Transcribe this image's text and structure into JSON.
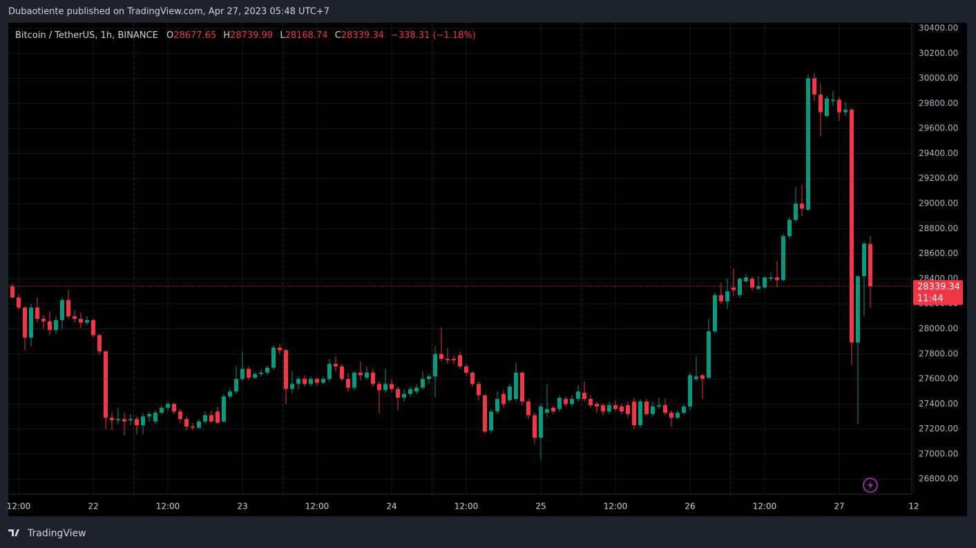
{
  "page": {
    "publisher_line": "Dubaotiente published on TradingView.com, Apr 27, 2023 05:48 UTC+7"
  },
  "footer": {
    "brand": "TradingView"
  },
  "chart_data": {
    "type": "candlestick",
    "header": {
      "o": "O",
      "h": "H",
      "l": "L",
      "c": "C",
      "change": "−338.31 (−1.18%)"
    },
    "countdown": "11:44",
    "up_color": "#089981",
    "down_color": "#f23645",
    "grid": true,
    "ylim": [
      26680,
      30444
    ],
    "yticks": [
      {
        "value": 26800,
        "label": "26800.00"
      },
      {
        "value": 27000,
        "label": "27000.00"
      },
      {
        "value": 27200,
        "label": "27200.00"
      },
      {
        "value": 27400,
        "label": "27400.00"
      },
      {
        "value": 27600,
        "label": "27600.00"
      },
      {
        "value": 27800,
        "label": "27800.00"
      },
      {
        "value": 28000,
        "label": "28000.00"
      },
      {
        "value": 28200,
        "label": "28200.00"
      },
      {
        "value": 28400,
        "label": "28400.00"
      },
      {
        "value": 28600,
        "label": "28600.00"
      },
      {
        "value": 28800,
        "label": "28800.00"
      },
      {
        "value": 29000,
        "label": "29000.00"
      },
      {
        "value": 29200,
        "label": "29200.00"
      },
      {
        "value": 29400,
        "label": "29400.00"
      },
      {
        "value": 29600,
        "label": "29600.00"
      },
      {
        "value": 29800,
        "label": "29800.00"
      },
      {
        "value": 30000,
        "label": "30000.00"
      },
      {
        "value": 30200,
        "label": "30200.00"
      },
      {
        "value": 30400,
        "label": "30400.00"
      }
    ],
    "categories": [
      null,
      "12:00",
      null,
      null,
      null,
      null,
      null,
      null,
      null,
      null,
      null,
      null,
      null,
      "22",
      null,
      null,
      null,
      null,
      null,
      null,
      null,
      null,
      null,
      null,
      null,
      "12:00",
      null,
      null,
      null,
      null,
      null,
      null,
      null,
      null,
      null,
      null,
      null,
      "23",
      null,
      null,
      null,
      null,
      null,
      null,
      null,
      null,
      null,
      null,
      null,
      "12:00",
      null,
      null,
      null,
      null,
      null,
      null,
      null,
      null,
      null,
      null,
      null,
      "24",
      null,
      null,
      null,
      null,
      null,
      null,
      null,
      null,
      null,
      null,
      null,
      "12:00",
      null,
      null,
      null,
      null,
      null,
      null,
      null,
      null,
      null,
      null,
      null,
      "25",
      null,
      null,
      null,
      null,
      null,
      null,
      null,
      null,
      null,
      null,
      null,
      "12:00",
      null,
      null,
      null,
      null,
      null,
      null,
      null,
      null,
      null,
      null,
      null,
      "26",
      null,
      null,
      null,
      null,
      null,
      null,
      null,
      null,
      null,
      null,
      null,
      "12:00",
      null,
      null,
      null,
      null,
      null,
      null,
      null,
      null,
      null,
      null,
      null,
      "27",
      null,
      null,
      null,
      null,
      null,
      null,
      null,
      null,
      null,
      null,
      null,
      "12"
    ],
    "series": [
      {
        "name": "Bitcoin / TetherUS, 1h, BINANCE",
        "open": [
          28340,
          28250,
          28170,
          27930,
          28170,
          28080,
          28060,
          27990,
          28070,
          28230,
          28100,
          28080,
          28050,
          28070,
          27950,
          27820,
          27290,
          27270,
          27280,
          27270,
          27280,
          27230,
          27300,
          27260,
          27330,
          27370,
          27400,
          27340,
          27280,
          27220,
          27210,
          27260,
          27310,
          27340,
          27260,
          27460,
          27500,
          27600,
          27680,
          27610,
          27640,
          27650,
          27690,
          27850,
          27830,
          27520,
          27560,
          27600,
          27560,
          27600,
          27570,
          27600,
          27720,
          27700,
          27600,
          27530,
          27650,
          27610,
          27650,
          27560,
          27510,
          27560,
          27520,
          27450,
          27480,
          27500,
          27530,
          27600,
          27620,
          27800,
          27760,
          27760,
          27790,
          27700,
          27650,
          27560,
          27470,
          27190,
          27340,
          27480,
          27430,
          27440,
          27650,
          27420,
          27310,
          27130,
          27330,
          27370,
          27360,
          27440,
          27400,
          27440,
          27490,
          27440,
          27400,
          27390,
          27340,
          27390,
          27380,
          27390,
          27420,
          27230,
          27420,
          27320,
          27380,
          27390,
          27330,
          27290,
          27330,
          27380,
          27600,
          27630,
          27610,
          27980,
          28270,
          28220,
          28330,
          28270,
          28380,
          28400,
          28320,
          28330,
          28400,
          28410,
          28390,
          28740,
          28870,
          29000,
          28950,
          30000,
          29870,
          29700,
          29820,
          29830,
          29730,
          29750,
          27890,
          28420,
          28677.65,
          null,
          null,
          null,
          null,
          null,
          null,
          null
        ],
        "high": [
          28360,
          28270,
          28180,
          28200,
          28250,
          28110,
          28140,
          28100,
          28250,
          28310,
          28150,
          28130,
          28100,
          28080,
          27960,
          27830,
          27330,
          27370,
          27330,
          27320,
          27300,
          27330,
          27340,
          27350,
          27390,
          27420,
          27410,
          27360,
          27300,
          27250,
          27280,
          27340,
          27350,
          27380,
          27480,
          27520,
          27700,
          27820,
          27700,
          27650,
          27680,
          27710,
          27870,
          27880,
          27840,
          27660,
          27620,
          27630,
          27620,
          27610,
          27620,
          27760,
          27780,
          27720,
          27650,
          27660,
          27740,
          27700,
          27680,
          27580,
          27680,
          27600,
          27540,
          27520,
          27540,
          27560,
          27660,
          27640,
          27860,
          28010,
          27850,
          27790,
          27820,
          27720,
          27660,
          27580,
          27480,
          27360,
          27500,
          27510,
          27560,
          27730,
          27660,
          27440,
          27330,
          27400,
          27560,
          27380,
          27470,
          27460,
          27470,
          27550,
          27580,
          27470,
          27420,
          27400,
          27420,
          27430,
          27400,
          27420,
          27450,
          27440,
          27440,
          27420,
          27450,
          27440,
          27350,
          27350,
          27400,
          27650,
          27780,
          27640,
          28080,
          28290,
          28370,
          28400,
          28480,
          28410,
          28440,
          28420,
          28420,
          28420,
          28450,
          28540,
          28760,
          28890,
          29130,
          29150,
          30030,
          30040,
          29960,
          29860,
          29900,
          29850,
          29810,
          29760,
          28430,
          28700,
          28739.99,
          null,
          null,
          null,
          null,
          null,
          null,
          null
        ],
        "low": [
          28250,
          28150,
          27830,
          27860,
          28050,
          28000,
          27950,
          27960,
          28000,
          28080,
          28050,
          28010,
          28030,
          27930,
          27790,
          27200,
          27190,
          27240,
          27150,
          27230,
          27160,
          27160,
          27260,
          27240,
          27310,
          27340,
          27320,
          27250,
          27190,
          27190,
          27200,
          27240,
          27250,
          27240,
          27250,
          27440,
          27480,
          27580,
          27590,
          27600,
          27620,
          27630,
          27670,
          27800,
          27400,
          27480,
          27520,
          27540,
          27540,
          27550,
          27560,
          27580,
          27660,
          27580,
          27500,
          27510,
          27590,
          27590,
          27540,
          27330,
          27490,
          27490,
          27350,
          27420,
          27460,
          27480,
          27510,
          27560,
          27450,
          27740,
          27720,
          27720,
          27680,
          27630,
          27540,
          27430,
          27170,
          27170,
          27320,
          27370,
          27410,
          27420,
          27390,
          27280,
          27080,
          26950,
          27300,
          27320,
          27340,
          27380,
          27380,
          27420,
          27420,
          27370,
          27330,
          27310,
          27320,
          27340,
          27320,
          27290,
          27200,
          27210,
          27300,
          27300,
          27360,
          27310,
          27220,
          27280,
          27310,
          27350,
          27580,
          27440,
          27600,
          27960,
          28200,
          28160,
          28260,
          28250,
          28370,
          28310,
          28310,
          28320,
          28380,
          28330,
          28380,
          28720,
          28850,
          28900,
          28940,
          29820,
          29540,
          29690,
          29780,
          29660,
          29700,
          27710,
          27240,
          28100,
          28168.74,
          null,
          null,
          null,
          null,
          null,
          null,
          null
        ],
        "close": [
          28250,
          28170,
          27930,
          28170,
          28080,
          28060,
          27990,
          28070,
          28230,
          28100,
          28080,
          28050,
          28070,
          27950,
          27820,
          27290,
          27270,
          27280,
          27260,
          27280,
          27230,
          27300,
          27320,
          27330,
          27370,
          27400,
          27340,
          27280,
          27220,
          27210,
          27260,
          27310,
          27260,
          27250,
          27460,
          27500,
          27600,
          27680,
          27610,
          27640,
          27650,
          27690,
          27850,
          27830,
          27520,
          27560,
          27600,
          27560,
          27600,
          27570,
          27600,
          27720,
          27700,
          27600,
          27530,
          27650,
          27630,
          27650,
          27560,
          27510,
          27560,
          27520,
          27450,
          27480,
          27520,
          27530,
          27600,
          27620,
          27800,
          27760,
          27750,
          27750,
          27700,
          27650,
          27560,
          27470,
          27180,
          27340,
          27440,
          27400,
          27540,
          27650,
          27420,
          27310,
          27130,
          27380,
          27360,
          27340,
          27450,
          27400,
          27440,
          27500,
          27440,
          27390,
          27380,
          27340,
          27390,
          27360,
          27340,
          27320,
          27230,
          27420,
          27320,
          27380,
          27390,
          27330,
          27290,
          27330,
          27380,
          27630,
          27620,
          27600,
          27980,
          28270,
          28220,
          28300,
          28310,
          28400,
          28410,
          28330,
          28340,
          28410,
          28410,
          28390,
          28740,
          28870,
          29000,
          28960,
          30000,
          29870,
          29730,
          29840,
          29830,
          29730,
          29750,
          27890,
          28420,
          28680,
          28339.34,
          null,
          null,
          null,
          null,
          null,
          null,
          null
        ]
      }
    ]
  }
}
